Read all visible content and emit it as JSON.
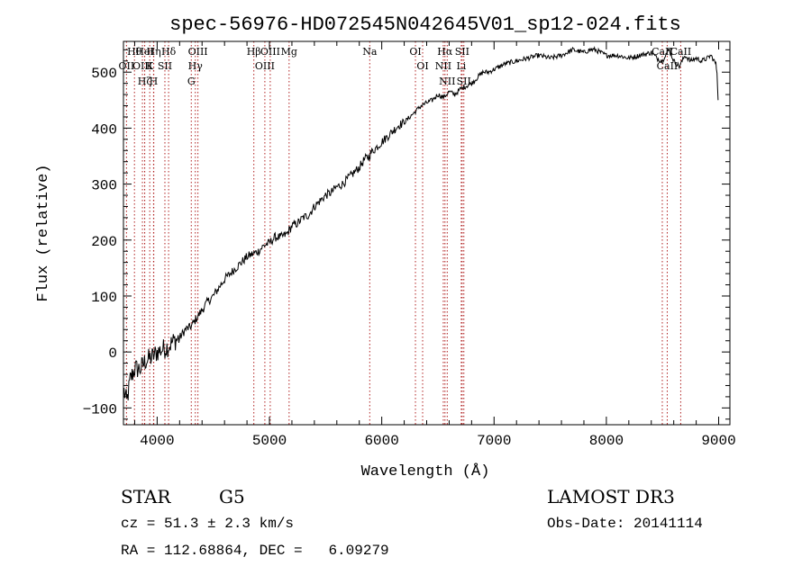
{
  "chart_data": {
    "type": "line",
    "title": "spec-56976-HD072545N042645V01_sp12-024.fits",
    "xlabel": "Wavelength (Å)",
    "ylabel": "Flux (relative)",
    "xlim": [
      3700,
      9100
    ],
    "ylim": [
      -130,
      555
    ],
    "xticks": [
      4000,
      5000,
      6000,
      7000,
      8000,
      9000
    ],
    "yticks": [
      -100,
      0,
      100,
      200,
      300,
      400,
      500
    ],
    "xtick_labels": [
      "4000",
      "5000",
      "6000",
      "7000",
      "8000",
      "9000"
    ],
    "ytick_labels": [
      "−100",
      "0",
      "100",
      "200",
      "300",
      "400",
      "500"
    ],
    "series": [
      {
        "name": "Flux",
        "x": [
          3705,
          3730,
          3760,
          3800,
          3850,
          3900,
          3950,
          4000,
          4050,
          4100,
          4150,
          4200,
          4250,
          4300,
          4350,
          4400,
          4450,
          4500,
          4550,
          4600,
          4650,
          4700,
          4750,
          4800,
          4850,
          4900,
          4950,
          5000,
          5050,
          5100,
          5150,
          5200,
          5250,
          5300,
          5350,
          5400,
          5450,
          5500,
          5550,
          5600,
          5650,
          5700,
          5750,
          5800,
          5850,
          5890,
          5900,
          5950,
          6000,
          6050,
          6100,
          6150,
          6200,
          6250,
          6300,
          6350,
          6400,
          6450,
          6500,
          6550,
          6600,
          6650,
          6700,
          6750,
          6800,
          6850,
          6900,
          6950,
          7000,
          7100,
          7200,
          7300,
          7400,
          7500,
          7600,
          7700,
          7800,
          7850,
          7900,
          8000,
          8100,
          8200,
          8300,
          8400,
          8450,
          8500,
          8520,
          8560,
          8600,
          8650,
          8700,
          8750,
          8800,
          8850,
          8900,
          8930,
          8960,
          8975,
          8985,
          8995
        ],
        "y": [
          -70,
          -90,
          -50,
          -30,
          -30,
          -15,
          -10,
          0,
          5,
          10,
          20,
          25,
          40,
          45,
          60,
          75,
          90,
          100,
          115,
          130,
          140,
          150,
          160,
          170,
          175,
          180,
          190,
          195,
          205,
          205,
          210,
          225,
          230,
          240,
          245,
          260,
          270,
          280,
          285,
          295,
          300,
          310,
          320,
          330,
          345,
          350,
          355,
          365,
          375,
          385,
          395,
          405,
          410,
          420,
          430,
          440,
          445,
          450,
          460,
          455,
          465,
          460,
          470,
          475,
          480,
          490,
          500,
          500,
          505,
          515,
          520,
          525,
          530,
          525,
          530,
          540,
          535,
          540,
          540,
          530,
          530,
          525,
          530,
          535,
          525,
          520,
          530,
          540,
          520,
          510,
          530,
          520,
          525,
          520,
          525,
          530,
          520,
          515,
          500,
          450
        ]
      }
    ],
    "spectral_lines": [
      {
        "label": "Hθ",
        "wavelength": 3798
      },
      {
        "label": "OII",
        "wavelength": 3727
      },
      {
        "label": "OIII",
        "wavelength": 3869
      },
      {
        "label": "Hζ",
        "wavelength": 3889
      },
      {
        "label": "HeI",
        "wavelength": 3889
      },
      {
        "label": "K",
        "wavelength": 3934
      },
      {
        "label": "Hη",
        "wavelength": 3970
      },
      {
        "label": "H",
        "wavelength": 3968
      },
      {
        "label": "SII",
        "wavelength": 4069
      },
      {
        "label": "Hδ",
        "wavelength": 4102
      },
      {
        "label": "OIII",
        "wavelength": 4363
      },
      {
        "label": "Hγ",
        "wavelength": 4340
      },
      {
        "label": "G",
        "wavelength": 4304
      },
      {
        "label": "Hβ",
        "wavelength": 4861
      },
      {
        "label": "OIII",
        "wavelength": 4959
      },
      {
        "label": "OIII",
        "wavelength": 5007
      },
      {
        "label": "Mg",
        "wavelength": 5175
      },
      {
        "label": "Na",
        "wavelength": 5893
      },
      {
        "label": "OI",
        "wavelength": 6300
      },
      {
        "label": "OI",
        "wavelength": 6364
      },
      {
        "label": "Hα",
        "wavelength": 6563
      },
      {
        "label": "SII",
        "wavelength": 6716
      },
      {
        "label": "NII",
        "wavelength": 6548
      },
      {
        "label": "Li",
        "wavelength": 6708
      },
      {
        "label": "NII",
        "wavelength": 6583
      },
      {
        "label": "SII",
        "wavelength": 6731
      },
      {
        "label": "CaII",
        "wavelength": 8498
      },
      {
        "label": "CaII",
        "wavelength": 8542
      },
      {
        "label": "CaII",
        "wavelength": 8662
      }
    ]
  },
  "info": {
    "object_class": "STAR",
    "subclass": "G5",
    "survey": "LAMOST DR3",
    "cz_text": "cz = 51.3 ± 2.3 km/s",
    "obs_date_text": "Obs-Date: 20141114",
    "coords_text": "RA = 112.68864, DEC =   6.09279"
  },
  "colors": {
    "line_marker": "#b02020",
    "spectrum": "#000000",
    "axis": "#000000"
  }
}
